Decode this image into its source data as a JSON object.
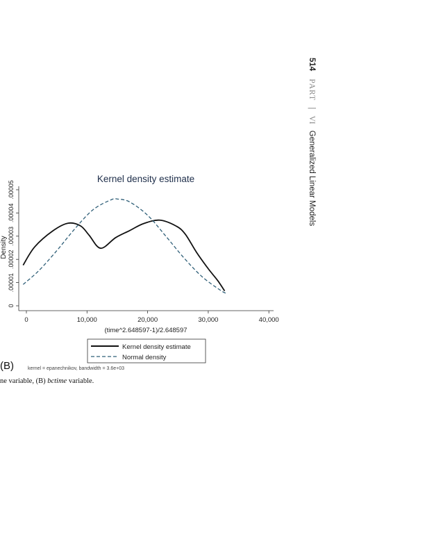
{
  "running_head": {
    "page_number": "514",
    "part": "PART",
    "separator": "|",
    "part_number": "VI",
    "title": "Generalized Linear Models"
  },
  "panel_label": "(B)",
  "kernel_note": "kernel = epanechnikov, bandwidth =  3.6e+03",
  "caption": {
    "prefix": "ne variable, (B) ",
    "italic": "bctime",
    "suffix": " variable."
  },
  "chart_data": {
    "type": "line",
    "title": "Kernel density estimate",
    "xlabel": "(time^2.648597-1)/2.648597",
    "ylabel": "Density",
    "xlim": [
      -1300,
      40500
    ],
    "ylim": [
      0,
      5e-05
    ],
    "xticks": [
      0,
      10000,
      20000,
      30000,
      40000
    ],
    "xtick_labels": [
      "0",
      "10,000",
      "20,000",
      "30,000",
      "40,000"
    ],
    "yticks": [
      0,
      1e-05,
      2e-05,
      3e-05,
      4e-05,
      5e-05
    ],
    "ytick_labels": [
      "0",
      ".00001",
      ".00002",
      ".00003",
      ".00004",
      ".00005"
    ],
    "grid": false,
    "legend_position": "bottom",
    "series": [
      {
        "name": "Kernel density estimate",
        "color": "#111111",
        "style": "solid",
        "x": [
          -540,
          1375,
          4430,
          6900,
          8950,
          10350,
          12250,
          14740,
          17030,
          19320,
          21990,
          24670,
          26200,
          28100,
          30020,
          31550,
          32700
        ],
        "y": [
          1.75e-05,
          2.54e-05,
          3.24e-05,
          3.56e-05,
          3.44e-05,
          3.04e-05,
          2.48e-05,
          2.94e-05,
          3.24e-05,
          3.54e-05,
          3.69e-05,
          3.44e-05,
          3.09e-05,
          2.29e-05,
          1.59e-05,
          1.09e-05,
          6.4e-06
        ]
      },
      {
        "name": "Normal density",
        "color": "#2f5f78",
        "style": "dashed",
        "x": [
          -540,
          2000,
          5000,
          8000,
          11000,
          14000,
          15000,
          17000,
          20000,
          23000,
          26000,
          29000,
          32000,
          33000
        ],
        "y": [
          9.2e-06,
          1.5e-05,
          2.37e-05,
          3.32e-05,
          4.14e-05,
          4.57e-05,
          4.6e-05,
          4.48e-05,
          3.9e-05,
          3e-05,
          2.06e-05,
          1.25e-05,
          6.7e-06,
          5.3e-06
        ]
      }
    ]
  }
}
